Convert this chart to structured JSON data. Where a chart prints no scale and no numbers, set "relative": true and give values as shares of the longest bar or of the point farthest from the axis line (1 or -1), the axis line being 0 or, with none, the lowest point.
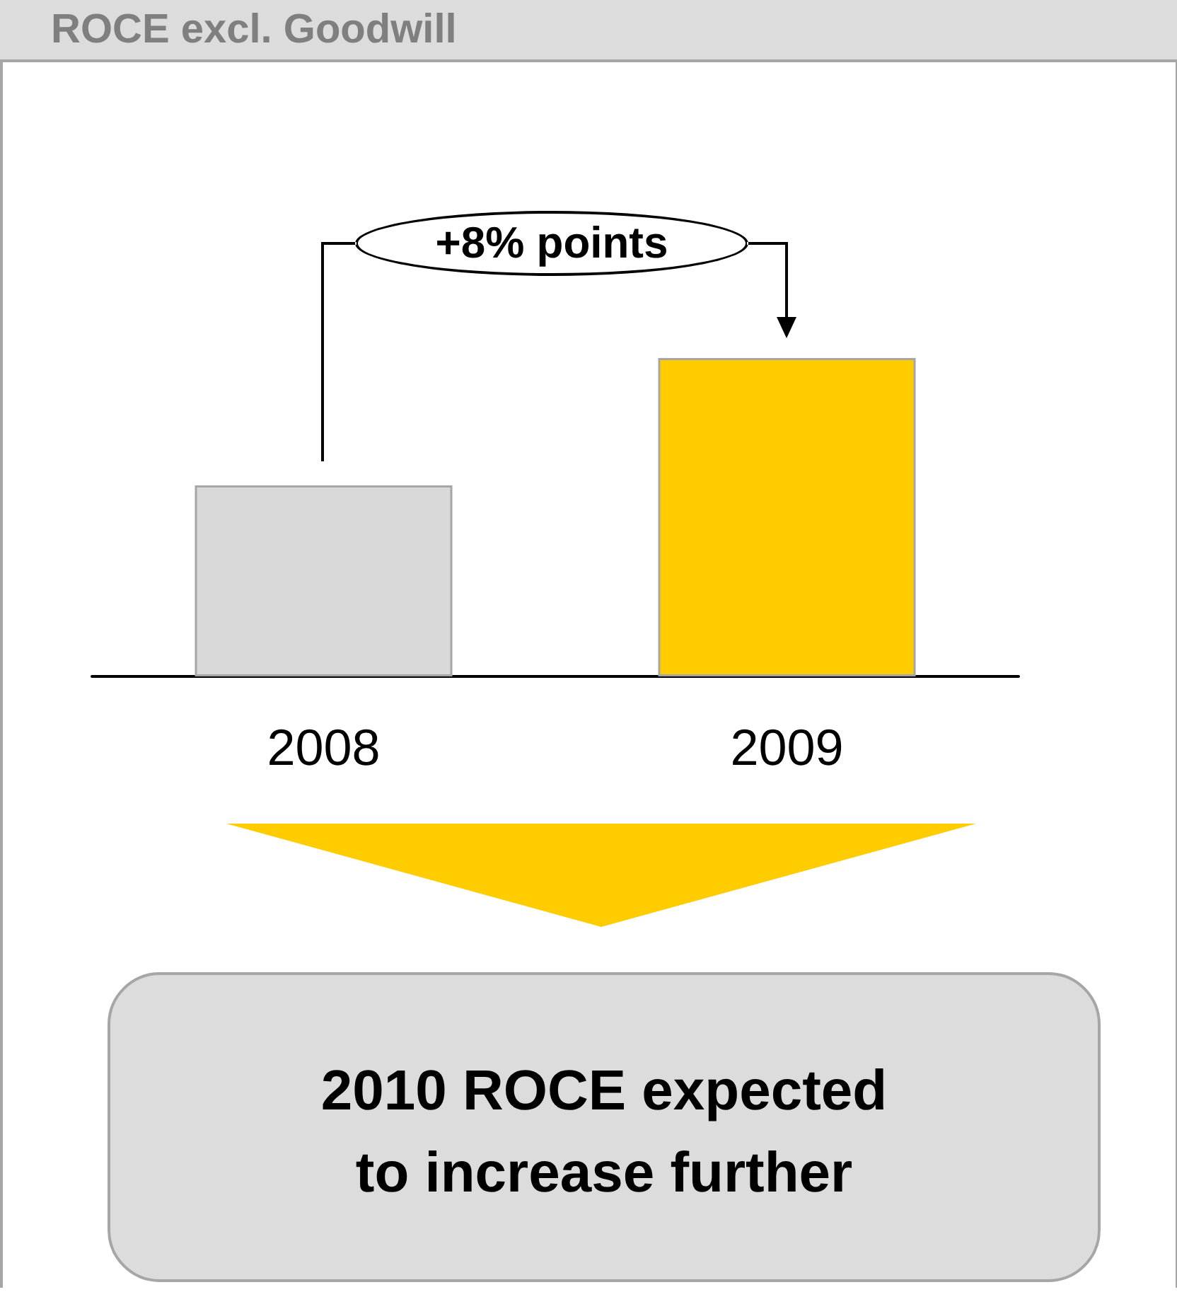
{
  "chart_data": {
    "type": "bar",
    "title": "ROCE excl. Goodwill",
    "categories": [
      "2008",
      "2009"
    ],
    "values": [
      0.6,
      1
    ],
    "colors": [
      "#d9d9d9",
      "#ffcc00"
    ],
    "relative": true,
    "annotations": [
      "+8% points",
      "2010 ROCE expected to increase further"
    ]
  }
}
